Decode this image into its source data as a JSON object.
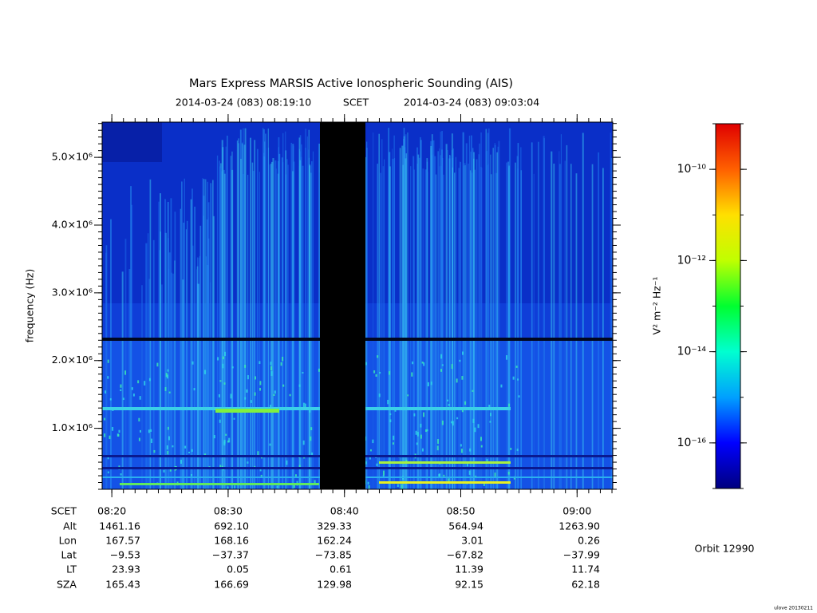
{
  "chart_data": {
    "type": "spectrogram",
    "title": "Mars Express MARSIS Active Ionospheric Sounding (AIS)",
    "start": "2014-03-24 (083) 08:19:10",
    "time_system": "SCET",
    "end": "2014-03-24 (083) 09:03:04",
    "y_label": "frequency (Hz)",
    "ylim": [
      100000,
      5520000
    ],
    "yticks": [
      {
        "value": 1000000,
        "label": "1.0×10⁶"
      },
      {
        "value": 2000000,
        "label": "2.0×10⁶"
      },
      {
        "value": 3000000,
        "label": "3.0×10⁶"
      },
      {
        "value": 4000000,
        "label": "4.0×10⁶"
      },
      {
        "value": 5000000,
        "label": "5.0×10⁶"
      }
    ],
    "xticks": [
      "08:20",
      "08:30",
      "08:40",
      "08:50",
      "09:00"
    ],
    "colorbar": {
      "label": "V² m⁻² Hz⁻¹",
      "log": true,
      "lim": [
        1e-17,
        1e-09
      ],
      "ticks": [
        {
          "value": 1e-10,
          "label": "10⁻¹⁰"
        },
        {
          "value": 1e-12,
          "label": "10⁻¹²"
        },
        {
          "value": 1e-14,
          "label": "10⁻¹⁴"
        },
        {
          "value": 1e-16,
          "label": "10⁻¹⁶"
        }
      ],
      "colors": [
        "#00007f",
        "#0000ff",
        "#00a0ff",
        "#00ffd0",
        "#00ff30",
        "#c0ff00",
        "#ffe000",
        "#ff6000",
        "#e00000"
      ]
    },
    "ephemeris": {
      "rows": [
        {
          "name": "SCET"
        },
        {
          "name": "Alt",
          "values": [
            "1461.16",
            "692.10",
            "329.33",
            "564.94",
            "1263.90"
          ]
        },
        {
          "name": "Lon",
          "values": [
            "167.57",
            "168.16",
            "162.24",
            "3.01",
            "0.26"
          ]
        },
        {
          "name": "Lat",
          "values": [
            "−9.53",
            "−37.37",
            "−73.85",
            "−67.82",
            "−37.99"
          ]
        },
        {
          "name": "LT",
          "values": [
            "23.93",
            "0.05",
            "0.61",
            "11.39",
            "11.74"
          ]
        },
        {
          "name": "SZA",
          "values": [
            "165.43",
            "166.69",
            "129.98",
            "92.15",
            "62.18"
          ]
        }
      ]
    },
    "orbit": "Orbit 12990",
    "footer": "ulove 20130211"
  }
}
